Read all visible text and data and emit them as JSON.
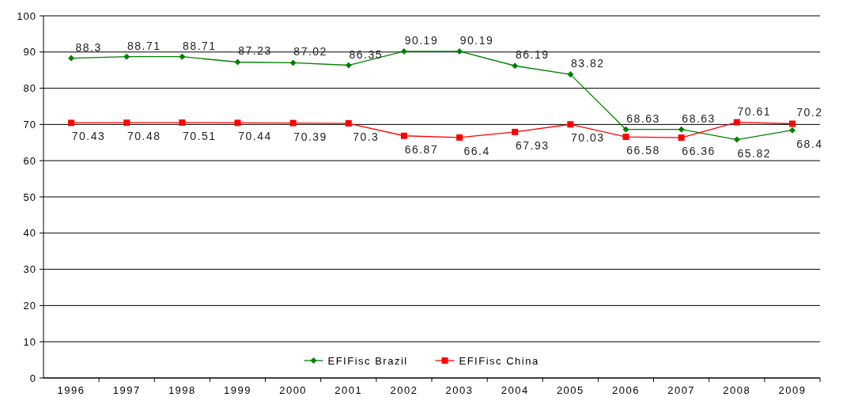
{
  "chart_data": {
    "type": "line",
    "categories": [
      "1996",
      "1997",
      "1998",
      "1999",
      "2000",
      "2001",
      "2002",
      "2003",
      "2004",
      "2005",
      "2006",
      "2007",
      "2008",
      "2009"
    ],
    "series": [
      {
        "name": "EFIFisc Brazil",
        "color": "#008000",
        "marker": "diamond",
        "values": [
          88.3,
          88.71,
          88.71,
          87.23,
          87.02,
          86.35,
          90.19,
          90.19,
          86.19,
          83.82,
          68.63,
          68.63,
          65.82,
          68.4
        ]
      },
      {
        "name": "EFIFisc China",
        "color": "#ff0000",
        "marker": "square",
        "values": [
          70.43,
          70.48,
          70.51,
          70.44,
          70.39,
          70.3,
          66.87,
          66.4,
          67.93,
          70.03,
          66.58,
          66.36,
          70.61,
          70.2
        ]
      }
    ],
    "ylim": [
      0,
      100
    ],
    "yticks": [
      0,
      10,
      20,
      30,
      40,
      50,
      60,
      70,
      80,
      90,
      100
    ],
    "grid": "y",
    "legend": "bottom",
    "data_labels": true
  }
}
